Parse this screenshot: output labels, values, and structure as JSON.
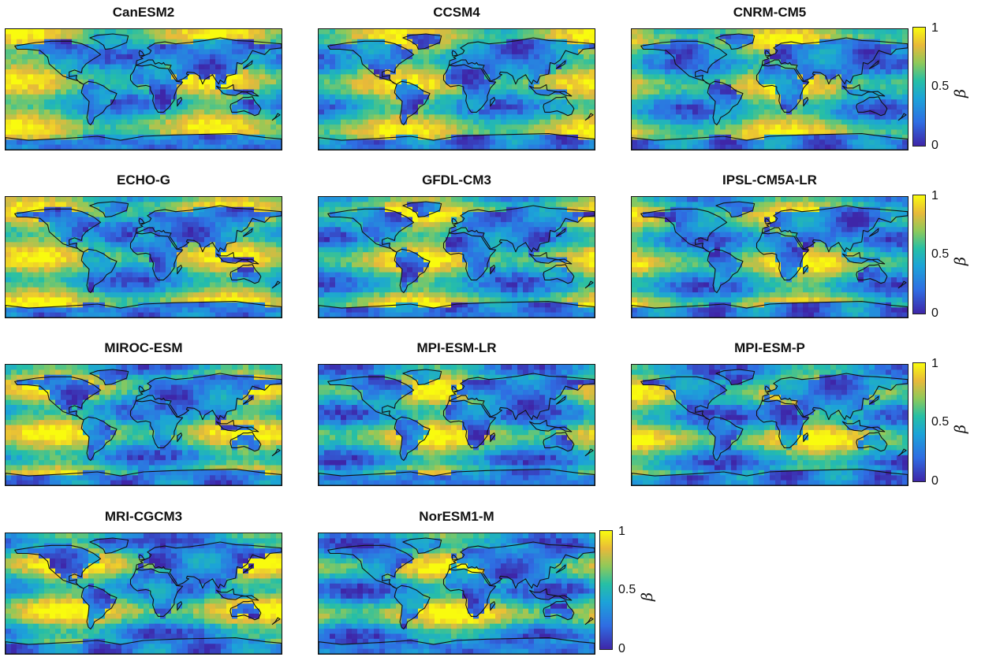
{
  "chart_data": [
    {
      "type": "heatmap",
      "title": "CanESM2",
      "colorbar": {
        "min": 0,
        "max": 1,
        "ticks": [
          "0",
          "0.5",
          "1"
        ],
        "label": "β"
      }
    },
    {
      "type": "heatmap",
      "title": "CCSM4",
      "colorbar": {
        "min": 0,
        "max": 1,
        "ticks": [
          "0",
          "0.5",
          "1"
        ],
        "label": "β"
      }
    },
    {
      "type": "heatmap",
      "title": "CNRM-CM5",
      "colorbar": {
        "min": 0,
        "max": 1,
        "ticks": [
          "0",
          "0.5",
          "1"
        ],
        "label": "β"
      }
    },
    {
      "type": "heatmap",
      "title": "ECHO-G",
      "colorbar": {
        "min": 0,
        "max": 1,
        "ticks": [
          "0",
          "0.5",
          "1"
        ],
        "label": "β"
      }
    },
    {
      "type": "heatmap",
      "title": "GFDL-CM3",
      "colorbar": {
        "min": 0,
        "max": 1,
        "ticks": [
          "0",
          "0.5",
          "1"
        ],
        "label": "β"
      }
    },
    {
      "type": "heatmap",
      "title": "IPSL-CM5A-LR",
      "colorbar": {
        "min": 0,
        "max": 1,
        "ticks": [
          "0",
          "0.5",
          "1"
        ],
        "label": "β"
      }
    },
    {
      "type": "heatmap",
      "title": "MIROC-ESM",
      "colorbar": {
        "min": 0,
        "max": 1,
        "ticks": [
          "0",
          "0.5",
          "1"
        ],
        "label": "β"
      }
    },
    {
      "type": "heatmap",
      "title": "MPI-ESM-LR",
      "colorbar": {
        "min": 0,
        "max": 1,
        "ticks": [
          "0",
          "0.5",
          "1"
        ],
        "label": "β"
      }
    },
    {
      "type": "heatmap",
      "title": "MPI-ESM-P",
      "colorbar": {
        "min": 0,
        "max": 1,
        "ticks": [
          "0",
          "0.5",
          "1"
        ],
        "label": "β"
      }
    },
    {
      "type": "heatmap",
      "title": "MRI-CGCM3",
      "colorbar": {
        "min": 0,
        "max": 1,
        "ticks": [
          "0",
          "0.5",
          "1"
        ],
        "label": "β"
      }
    },
    {
      "type": "heatmap",
      "title": "NorESM1-M",
      "colorbar": {
        "min": 0,
        "max": 1,
        "ticks": [
          "0",
          "0.5",
          "1"
        ],
        "label": "β"
      }
    }
  ],
  "colormap": [
    "#3e26a8",
    "#2f6de3",
    "#1ca3d8",
    "#26bfa6",
    "#8ec95a",
    "#e8b93a",
    "#f9fb0e"
  ]
}
